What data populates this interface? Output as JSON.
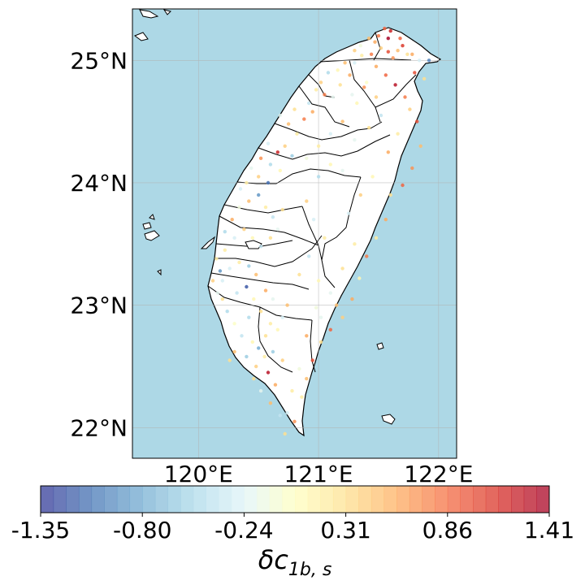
{
  "map": {
    "lat_labels": [
      {
        "lat": 25,
        "text": "25°N"
      },
      {
        "lat": 24,
        "text": "24°N"
      },
      {
        "lat": 23,
        "text": "23°N"
      },
      {
        "lat": 22,
        "text": "22°N"
      }
    ],
    "lon_labels": [
      {
        "lon": 120,
        "text": "120°E"
      },
      {
        "lon": 121,
        "text": "121°E"
      },
      {
        "lon": 122,
        "text": "122°E"
      }
    ],
    "extent": {
      "lon_min": 119.45,
      "lon_max": 122.15,
      "lat_min": 21.75,
      "lat_max": 25.42
    },
    "ocean_color": "#add8e6",
    "land_color": "#ffffff"
  },
  "colorbar": {
    "title": "δc",
    "title_sub": "1b, s",
    "min": -1.35,
    "max": 1.41,
    "n_bins": 40,
    "colormap": "RdYlBu_r",
    "tick_labels": [
      "-1.35",
      "-0.80",
      "-0.24",
      "0.31",
      "0.86",
      "1.41"
    ]
  },
  "chart_data": {
    "type": "scatter",
    "xlabel": "",
    "ylabel": "",
    "xlim": [
      119.45,
      122.15
    ],
    "ylim": [
      21.75,
      25.42
    ],
    "note_colorscale": [
      -1.35,
      1.41
    ],
    "points": [
      [
        121.55,
        25.26,
        0.9
      ],
      [
        121.6,
        25.24,
        1.2
      ],
      [
        121.47,
        25.15,
        0.6
      ],
      [
        121.52,
        25.1,
        0.4
      ],
      [
        121.44,
        25.05,
        0.8
      ],
      [
        121.58,
        25.07,
        1.0
      ],
      [
        121.62,
        25.02,
        0.7
      ],
      [
        121.66,
        25.08,
        0.5
      ],
      [
        121.7,
        25.12,
        1.1
      ],
      [
        121.74,
        25.05,
        0.3
      ],
      [
        121.36,
        25.04,
        0.2
      ],
      [
        121.3,
        24.98,
        -0.3
      ],
      [
        121.22,
        24.98,
        0.5
      ],
      [
        121.16,
        24.92,
        0.1
      ],
      [
        121.26,
        24.88,
        0.6
      ],
      [
        121.08,
        24.9,
        -0.5
      ],
      [
        121.02,
        24.82,
        0.4
      ],
      [
        120.98,
        24.76,
        0.2
      ],
      [
        121.05,
        24.72,
        0.8
      ],
      [
        121.12,
        24.7,
        -0.2
      ],
      [
        121.4,
        24.82,
        0.0
      ],
      [
        121.48,
        24.95,
        0.6
      ],
      [
        121.56,
        24.88,
        0.9
      ],
      [
        121.64,
        24.8,
        1.3
      ],
      [
        121.72,
        24.7,
        0.8
      ],
      [
        121.76,
        24.6,
        0.4
      ],
      [
        121.82,
        24.5,
        1.0
      ],
      [
        121.85,
        24.3,
        0.5
      ],
      [
        121.78,
        24.12,
        0.7
      ],
      [
        121.7,
        23.98,
        0.9
      ],
      [
        121.6,
        23.9,
        0.3
      ],
      [
        121.56,
        23.7,
        0.6
      ],
      [
        121.48,
        23.55,
        0.2
      ],
      [
        121.4,
        23.4,
        0.8
      ],
      [
        121.34,
        23.22,
        0.1
      ],
      [
        121.28,
        23.05,
        0.6
      ],
      [
        121.2,
        22.9,
        0.4
      ],
      [
        121.1,
        22.8,
        0.9
      ],
      [
        121.02,
        22.7,
        0.3
      ],
      [
        120.95,
        22.55,
        1.0
      ],
      [
        120.9,
        22.4,
        0.5
      ],
      [
        120.86,
        22.25,
        0.2
      ],
      [
        120.8,
        22.05,
        0.7
      ],
      [
        120.72,
        21.95,
        0.3
      ],
      [
        120.74,
        22.12,
        -0.3
      ],
      [
        120.64,
        22.35,
        0.6
      ],
      [
        120.58,
        22.45,
        1.3
      ],
      [
        120.55,
        22.58,
        0.2
      ],
      [
        120.5,
        22.65,
        -0.8
      ],
      [
        120.45,
        22.7,
        0.1
      ],
      [
        120.36,
        22.75,
        -0.4
      ],
      [
        120.3,
        22.62,
        0.5
      ],
      [
        120.26,
        22.55,
        0.3
      ],
      [
        120.4,
        22.58,
        -0.6
      ],
      [
        120.48,
        22.5,
        0.4
      ],
      [
        120.3,
        22.85,
        0.0
      ],
      [
        120.24,
        22.95,
        -0.5
      ],
      [
        120.2,
        23.05,
        0.3
      ],
      [
        120.16,
        23.1,
        -0.2
      ],
      [
        120.12,
        23.2,
        0.4
      ],
      [
        120.18,
        23.28,
        -0.9
      ],
      [
        120.26,
        23.3,
        -0.3
      ],
      [
        120.34,
        23.35,
        0.2
      ],
      [
        120.42,
        23.32,
        -0.6
      ],
      [
        120.48,
        23.25,
        0.5
      ],
      [
        120.4,
        23.15,
        -1.2
      ],
      [
        120.32,
        23.1,
        -0.4
      ],
      [
        120.46,
        23.05,
        0.1
      ],
      [
        120.56,
        23.12,
        0.6
      ],
      [
        120.62,
        23.05,
        -0.2
      ],
      [
        120.52,
        22.95,
        0.3
      ],
      [
        120.42,
        22.9,
        -0.5
      ],
      [
        120.6,
        22.85,
        0.2
      ],
      [
        120.7,
        22.9,
        -0.3
      ],
      [
        120.74,
        23.0,
        0.5
      ],
      [
        120.22,
        23.45,
        0.2
      ],
      [
        120.3,
        23.55,
        -0.3
      ],
      [
        120.38,
        23.62,
        0.4
      ],
      [
        120.45,
        23.55,
        0.1
      ],
      [
        120.52,
        23.48,
        -0.4
      ],
      [
        120.6,
        23.55,
        0.3
      ],
      [
        120.66,
        23.62,
        -0.2
      ],
      [
        120.28,
        23.7,
        0.6
      ],
      [
        120.34,
        23.8,
        -0.1
      ],
      [
        120.42,
        23.85,
        0.5
      ],
      [
        120.5,
        23.9,
        -0.9
      ],
      [
        120.56,
        23.8,
        0.2
      ],
      [
        120.62,
        23.72,
        -0.4
      ],
      [
        120.7,
        23.78,
        0.3
      ],
      [
        120.58,
        24.0,
        -1.1
      ],
      [
        120.5,
        24.05,
        0.4
      ],
      [
        120.44,
        24.12,
        -0.2
      ],
      [
        120.52,
        24.2,
        0.7
      ],
      [
        120.6,
        24.15,
        -0.5
      ],
      [
        120.68,
        24.1,
        0.1
      ],
      [
        120.66,
        24.25,
        1.2
      ],
      [
        120.58,
        24.32,
        -0.3
      ],
      [
        120.72,
        24.3,
        0.4
      ],
      [
        120.78,
        24.22,
        -0.6
      ],
      [
        120.82,
        24.4,
        0.2
      ],
      [
        120.75,
        24.48,
        0.5
      ],
      [
        120.68,
        24.55,
        -0.2
      ],
      [
        120.8,
        24.6,
        0.3
      ],
      [
        120.88,
        24.52,
        0.8
      ],
      [
        120.92,
        24.65,
        -0.4
      ],
      [
        120.4,
        24.0,
        0.2
      ],
      [
        120.35,
        23.95,
        -0.3
      ],
      [
        121.0,
        24.05,
        -0.5
      ],
      [
        121.1,
        24.15,
        0.1
      ],
      [
        121.2,
        24.1,
        -0.2
      ],
      [
        120.9,
        23.85,
        0.4
      ],
      [
        120.96,
        23.7,
        -0.3
      ],
      [
        121.05,
        23.55,
        0.2
      ],
      [
        120.92,
        23.4,
        -0.4
      ],
      [
        120.84,
        23.25,
        0.3
      ],
      [
        121.0,
        23.2,
        0.1
      ],
      [
        121.1,
        23.1,
        -0.2
      ],
      [
        121.15,
        23.0,
        0.5
      ],
      [
        120.98,
        22.98,
        -0.1
      ],
      [
        121.2,
        23.3,
        0.3
      ],
      [
        121.3,
        23.5,
        0.2
      ],
      [
        121.25,
        23.75,
        -0.3
      ],
      [
        121.35,
        23.9,
        0.4
      ],
      [
        121.45,
        24.05,
        0.1
      ],
      [
        121.58,
        24.25,
        0.6
      ],
      [
        121.66,
        24.4,
        0.2
      ],
      [
        121.52,
        24.55,
        -0.4
      ],
      [
        121.42,
        24.45,
        0.3
      ],
      [
        121.3,
        24.35,
        -0.2
      ],
      [
        121.2,
        24.5,
        0.5
      ],
      [
        121.32,
        24.65,
        0.1
      ],
      [
        121.1,
        24.4,
        -0.3
      ],
      [
        121.0,
        24.3,
        0.2
      ],
      [
        120.9,
        24.2,
        -0.1
      ],
      [
        121.48,
        24.7,
        0.4
      ],
      [
        121.38,
        24.78,
        0.7
      ],
      [
        121.28,
        24.72,
        -0.2
      ],
      [
        121.18,
        24.8,
        0.3
      ],
      [
        120.95,
        24.58,
        0.6
      ],
      [
        121.58,
        25.18,
        1.4
      ],
      [
        121.5,
        25.2,
        0.8
      ],
      [
        121.42,
        25.18,
        0.5
      ],
      [
        121.35,
        25.12,
        -0.1
      ],
      [
        121.3,
        25.08,
        0.4
      ],
      [
        121.68,
        25.18,
        0.9
      ],
      [
        121.78,
        25.05,
        0.6
      ],
      [
        121.84,
        25.0,
        -0.3
      ],
      [
        121.88,
        24.85,
        0.3
      ],
      [
        121.8,
        24.9,
        1.0
      ],
      [
        121.92,
        25.0,
        -1.0
      ],
      [
        120.46,
        22.4,
        0.3
      ],
      [
        120.52,
        22.3,
        -0.2
      ],
      [
        120.6,
        22.2,
        0.5
      ],
      [
        120.68,
        22.1,
        -0.4
      ],
      [
        120.78,
        22.3,
        0.2
      ],
      [
        120.84,
        22.48,
        -0.1
      ],
      [
        120.7,
        22.55,
        0.4
      ],
      [
        120.62,
        22.62,
        -0.6
      ],
      [
        120.56,
        22.75,
        0.3
      ],
      [
        120.66,
        22.8,
        0.1
      ],
      [
        120.9,
        22.75,
        0.6
      ],
      [
        121.02,
        22.9,
        -0.2
      ],
      [
        120.22,
        23.6,
        -0.5
      ],
      [
        120.15,
        23.38,
        0.2
      ],
      [
        120.2,
        23.2,
        -0.3
      ]
    ]
  }
}
